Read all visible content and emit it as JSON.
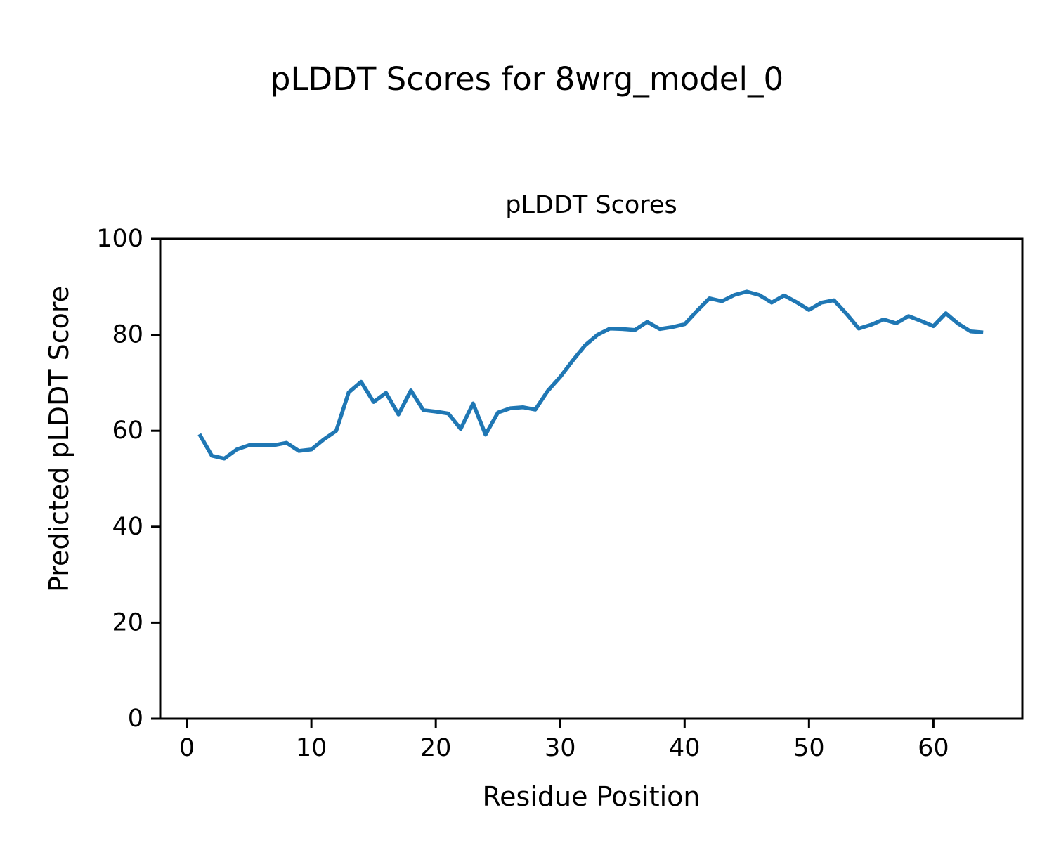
{
  "figure_title": "pLDDT Scores for 8wrg_model_0",
  "chart_data": {
    "type": "line",
    "title": "pLDDT Scores",
    "xlabel": "Residue Position",
    "ylabel": "Predicted pLDDT Score",
    "xlim": [
      -2.15,
      67.15
    ],
    "ylim": [
      0,
      100
    ],
    "x_ticks": [
      0,
      10,
      20,
      30,
      40,
      50,
      60
    ],
    "y_ticks": [
      0,
      20,
      40,
      60,
      80,
      100
    ],
    "grid": false,
    "legend": "none",
    "line_color": "#1f77b4",
    "series": [
      {
        "name": "pLDDT",
        "x": [
          1,
          2,
          3,
          4,
          5,
          6,
          7,
          8,
          9,
          10,
          11,
          12,
          13,
          14,
          15,
          16,
          17,
          18,
          19,
          20,
          21,
          22,
          23,
          24,
          25,
          26,
          27,
          28,
          29,
          30,
          31,
          32,
          33,
          34,
          35,
          36,
          37,
          38,
          39,
          40,
          41,
          42,
          43,
          44,
          45,
          46,
          47,
          48,
          49,
          50,
          51,
          52,
          53,
          54,
          55,
          56,
          57,
          58,
          59,
          60,
          61,
          62,
          63,
          64
        ],
        "values": [
          59.3,
          54.8,
          54.2,
          56.1,
          57.0,
          57.0,
          57.0,
          57.5,
          55.8,
          56.1,
          58.2,
          60.0,
          68.0,
          70.2,
          66.0,
          67.9,
          63.4,
          68.4,
          64.3,
          64.0,
          63.6,
          60.4,
          65.7,
          59.2,
          63.8,
          64.7,
          64.9,
          64.4,
          68.3,
          71.2,
          74.6,
          77.8,
          80.0,
          81.3,
          81.2,
          81.0,
          82.7,
          81.2,
          81.6,
          82.2,
          85.0,
          87.6,
          87.0,
          88.3,
          89.0,
          88.3,
          86.7,
          88.2,
          86.8,
          85.2,
          86.7,
          87.2,
          84.4,
          81.3,
          82.1,
          83.2,
          82.4,
          83.9,
          82.9,
          81.8,
          84.5,
          82.3,
          80.7,
          80.5
        ]
      }
    ]
  }
}
